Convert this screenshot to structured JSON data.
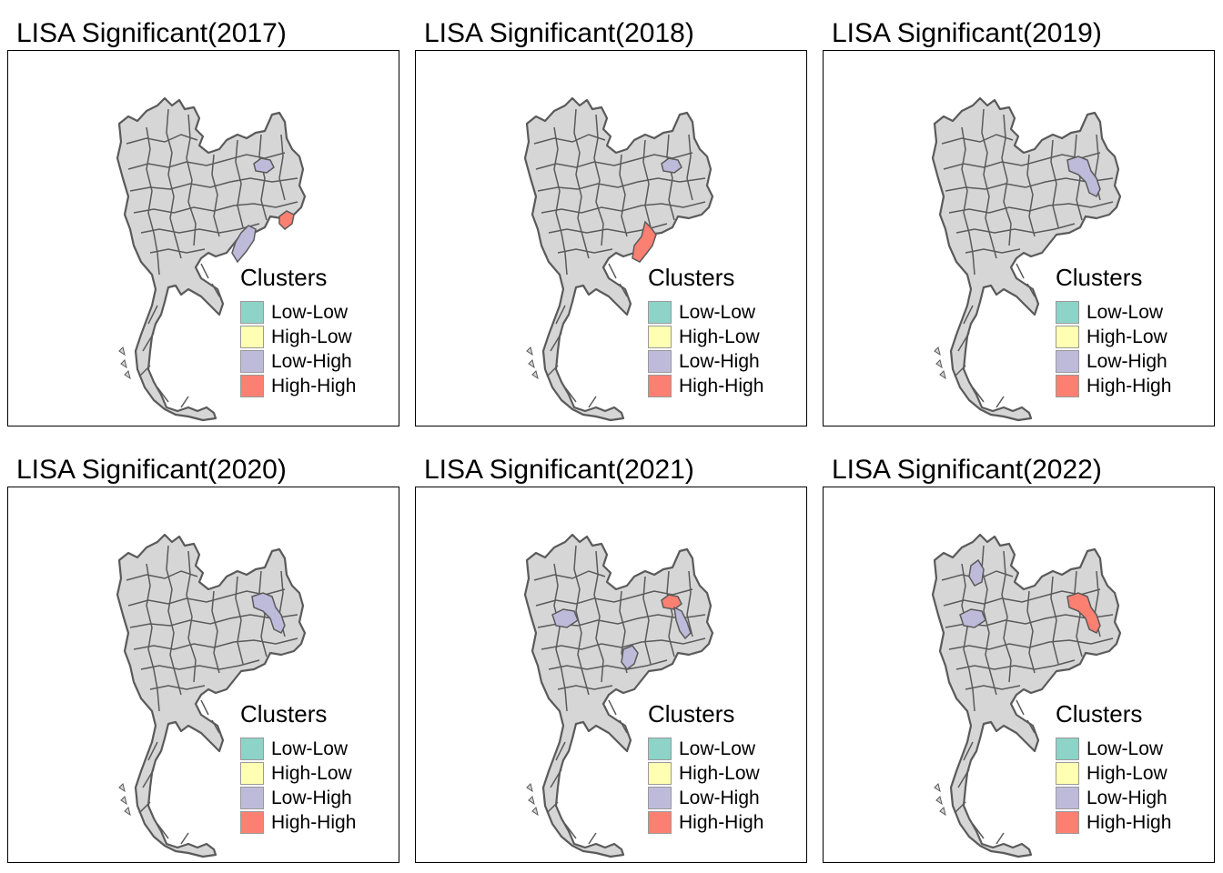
{
  "legend": {
    "title": "Clusters",
    "items": [
      {
        "label": "Low-Low",
        "color": "#8DD3C7"
      },
      {
        "label": "High-Low",
        "color": "#FFFFB3"
      },
      {
        "label": "Low-High",
        "color": "#BEBADA"
      },
      {
        "label": "High-High",
        "color": "#FB8072"
      }
    ]
  },
  "colors": {
    "province_fill": "#d6d6d6",
    "border": "#5a5a5a"
  },
  "panels": [
    {
      "title": "LISA Significant(2017)",
      "highlights": [
        {
          "region": "northeast-tip",
          "cluster": "Low-High"
        },
        {
          "region": "east-border",
          "cluster": "High-High"
        },
        {
          "region": "center-east",
          "cluster": "Low-High"
        }
      ]
    },
    {
      "title": "LISA Significant(2018)",
      "highlights": [
        {
          "region": "northeast-tip",
          "cluster": "Low-High"
        },
        {
          "region": "center-east-large",
          "cluster": "High-High"
        }
      ]
    },
    {
      "title": "LISA Significant(2019)",
      "highlights": [
        {
          "region": "northeast-edge",
          "cluster": "Low-High"
        }
      ]
    },
    {
      "title": "LISA Significant(2020)",
      "highlights": [
        {
          "region": "northeast-edge",
          "cluster": "Low-High"
        }
      ]
    },
    {
      "title": "LISA Significant(2021)",
      "highlights": [
        {
          "region": "northeast-tip",
          "cluster": "High-High"
        },
        {
          "region": "northeast-edge-south",
          "cluster": "Low-High"
        },
        {
          "region": "west-central",
          "cluster": "Low-High"
        },
        {
          "region": "southeast-inner",
          "cluster": "Low-High"
        }
      ]
    },
    {
      "title": "LISA Significant(2022)",
      "highlights": [
        {
          "region": "northwest-inner",
          "cluster": "Low-High"
        },
        {
          "region": "west-central",
          "cluster": "Low-High"
        },
        {
          "region": "northeast-edge",
          "cluster": "High-High"
        }
      ]
    }
  ]
}
